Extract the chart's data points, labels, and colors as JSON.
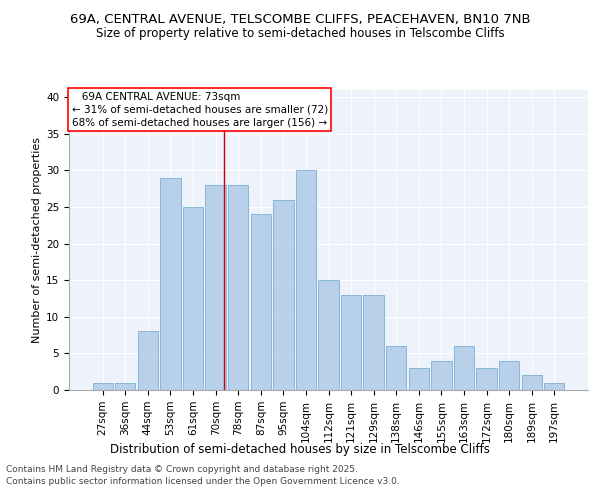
{
  "title_line1": "69A, CENTRAL AVENUE, TELSCOMBE CLIFFS, PEACEHAVEN, BN10 7NB",
  "title_line2": "Size of property relative to semi-detached houses in Telscombe Cliffs",
  "xlabel": "Distribution of semi-detached houses by size in Telscombe Cliffs",
  "ylabel": "Number of semi-detached properties",
  "categories": [
    "27sqm",
    "36sqm",
    "44sqm",
    "53sqm",
    "61sqm",
    "70sqm",
    "78sqm",
    "87sqm",
    "95sqm",
    "104sqm",
    "112sqm",
    "121sqm",
    "129sqm",
    "138sqm",
    "146sqm",
    "155sqm",
    "163sqm",
    "172sqm",
    "180sqm",
    "189sqm",
    "197sqm"
  ],
  "values": [
    1,
    1,
    8,
    29,
    25,
    28,
    28,
    24,
    26,
    30,
    15,
    13,
    13,
    6,
    3,
    4,
    6,
    3,
    4,
    2,
    1
  ],
  "bar_color": "#b8d0ea",
  "bar_edge_color": "#7aafd4",
  "background_color": "#eef2fb",
  "grid_color": "#ffffff",
  "property_label": "69A CENTRAL AVENUE: 73sqm",
  "pct_smaller": 31,
  "count_smaller": 72,
  "pct_larger": 68,
  "count_larger": 156,
  "vline_color": "#cc0000",
  "vline_index": 5.375,
  "ylim_max": 41,
  "yticks": [
    0,
    5,
    10,
    15,
    20,
    25,
    30,
    35,
    40
  ],
  "footer_line1": "Contains HM Land Registry data © Crown copyright and database right 2025.",
  "footer_line2": "Contains public sector information licensed under the Open Government Licence v3.0.",
  "title_fontsize": 9.5,
  "subtitle_fontsize": 8.5,
  "axis_tick_fontsize": 7.5,
  "ylabel_fontsize": 8,
  "xlabel_fontsize": 8.5,
  "annotation_fontsize": 7.5,
  "footer_fontsize": 6.5
}
